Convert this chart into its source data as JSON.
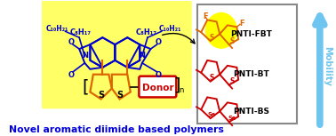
{
  "bg_color": "#ffffff",
  "title_text": "Novel aromatic diimide based polymers",
  "title_color": "#0000dd",
  "title_fontsize": 7.8,
  "title_fontstyle": "bold",
  "arrow_color": "#6ec6f0",
  "mobility_text": "Mobility",
  "polymer_labels": [
    "PNTI-FBT",
    "PNTI-BT",
    "PNTI-BS"
  ],
  "label_color": "#000000",
  "highlight_yellow": "#ffff66",
  "blue_color": "#0000cc",
  "red_color": "#cc0000",
  "orange_color": "#dd6600",
  "fbt_highlight": "#ffff00",
  "box_edge_color": "#888888"
}
